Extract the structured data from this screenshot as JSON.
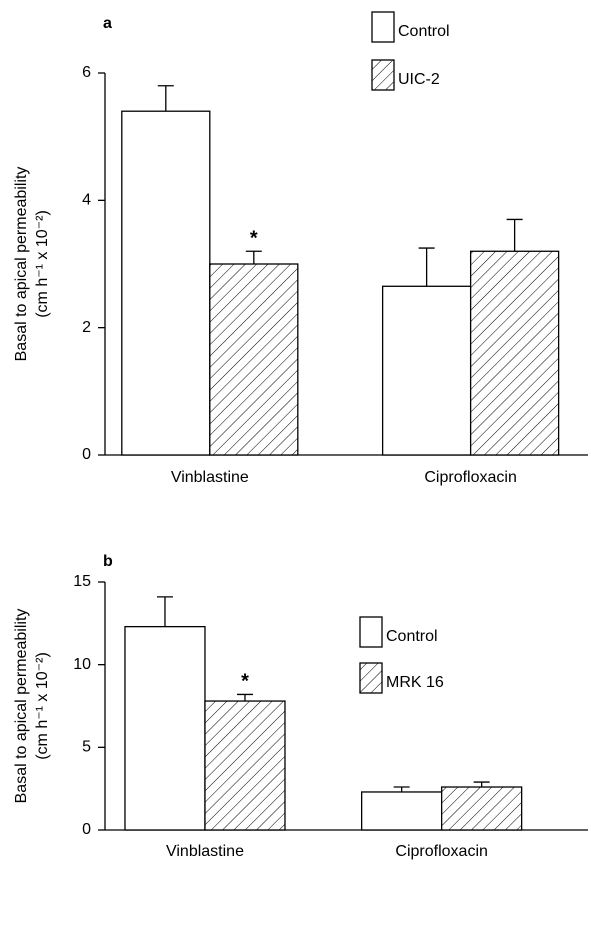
{
  "chart_data": [
    {
      "type": "bar",
      "label": "a",
      "ylabel": [
        "Basal to apical permeability",
        "(cm h⁻¹ x 10⁻²)"
      ],
      "categories": [
        "Vinblastine",
        "Ciprofloxacin"
      ],
      "series": [
        {
          "name": "Control",
          "color": "#ffffff",
          "values": [
            5.4,
            2.65
          ],
          "errors": [
            0.4,
            0.6
          ]
        },
        {
          "name": "UIC-2",
          "color": "#ffffff",
          "pattern": "hatch",
          "values": [
            3.0,
            3.2
          ],
          "errors": [
            0.2,
            0.5
          ]
        }
      ],
      "annotations": [
        {
          "text": "*",
          "series": 1,
          "category": 0
        }
      ],
      "ylim": [
        0,
        6
      ],
      "yticks": [
        0,
        2,
        4,
        6
      ],
      "legend": "above"
    },
    {
      "type": "bar",
      "label": "b",
      "ylabel": [
        "Basal to apical permeability",
        "(cm h⁻¹ x 10⁻²)"
      ],
      "categories": [
        "Vinblastine",
        "Ciprofloxacin"
      ],
      "series": [
        {
          "name": "Control",
          "color": "#ffffff",
          "values": [
            12.3,
            2.3
          ],
          "errors": [
            1.8,
            0.3
          ]
        },
        {
          "name": "MRK 16",
          "color": "#ffffff",
          "pattern": "hatch",
          "values": [
            7.8,
            2.6
          ],
          "errors": [
            0.4,
            0.3
          ]
        }
      ],
      "annotations": [
        {
          "text": "*",
          "series": 1,
          "category": 0
        }
      ],
      "ylim": [
        0,
        15
      ],
      "yticks": [
        0,
        5,
        10,
        15
      ],
      "legend": "right"
    }
  ]
}
